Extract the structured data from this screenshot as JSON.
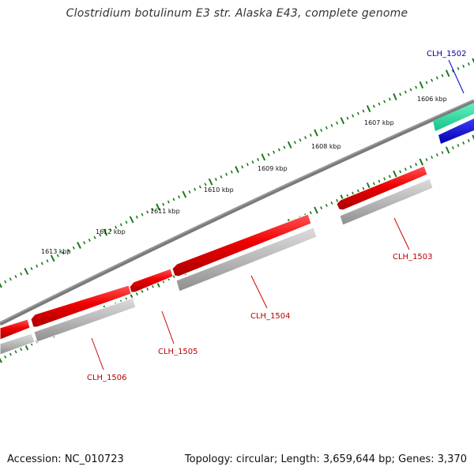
{
  "title": "Clostridium botulinum E3 str. Alaska E43, complete genome",
  "footer": {
    "accession": "Accession: NC_010723",
    "stats": "Topology: circular; Length: 3,659,644 bp; Genes: 3,370"
  },
  "colors": {
    "forward_cds": "#ee0000",
    "forward_cds_dark": "#b40000",
    "rna": "#22dd99",
    "other": "#0000cc",
    "shadow": "#b5b5b5",
    "backbone": "#808080",
    "tick": "#1a7a1a",
    "label_red": "#bb0000",
    "label_blue": "#0000aa"
  },
  "ticks": [
    {
      "label": "1606 kbp"
    },
    {
      "label": "1607 kbp"
    },
    {
      "label": "1608 kbp"
    },
    {
      "label": "1609 kbp"
    },
    {
      "label": "1610 kbp"
    },
    {
      "label": "1611 kbp"
    },
    {
      "label": "1612 kbp"
    },
    {
      "label": "1613 kbp"
    }
  ],
  "genes": [
    {
      "name": "CLH_1502",
      "color": "label_blue"
    },
    {
      "name": "CLH_1503",
      "color": "label_red"
    },
    {
      "name": "CLH_1504",
      "color": "label_red"
    },
    {
      "name": "CLH_1505",
      "color": "label_red"
    },
    {
      "name": "CLH_1506",
      "color": "label_red"
    }
  ]
}
